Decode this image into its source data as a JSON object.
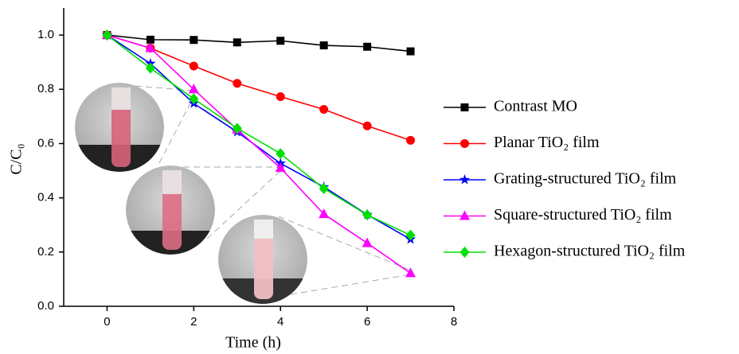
{
  "chart_data": {
    "type": "line",
    "x_label": "Time (h)",
    "y_label": "C/C₀",
    "x": [
      0,
      1,
      2,
      3,
      4,
      5,
      6,
      7
    ],
    "series": [
      {
        "name": "Contrast MO",
        "color": "#000000",
        "marker": "square",
        "values": [
          1.0,
          0.983,
          0.982,
          0.973,
          0.979,
          0.962,
          0.957,
          0.94
        ]
      },
      {
        "name": "Planar TiO₂ film",
        "color": "#ff0000",
        "marker": "circle",
        "values": [
          1.0,
          0.952,
          0.886,
          0.822,
          0.773,
          0.726,
          0.665,
          0.612
        ]
      },
      {
        "name": "Grating-structured TiO₂ film",
        "color": "#0000ff",
        "marker": "star",
        "values": [
          1.0,
          0.895,
          0.748,
          0.643,
          0.527,
          0.44,
          0.338,
          0.247
        ]
      },
      {
        "name": "Square-structured TiO₂ film",
        "color": "#ff00ff",
        "marker": "triangle",
        "values": [
          1.0,
          0.952,
          0.8,
          0.652,
          0.51,
          0.34,
          0.233,
          0.122
        ]
      },
      {
        "name": "Hexagon-structured TiO₂ film",
        "color": "#00e000",
        "marker": "diamond",
        "values": [
          1.0,
          0.878,
          0.765,
          0.656,
          0.563,
          0.434,
          0.337,
          0.262
        ]
      }
    ],
    "xlim": [
      -1,
      8
    ],
    "xticks": [
      0,
      2,
      4,
      6,
      8
    ],
    "ylim": [
      0,
      1.1
    ],
    "yticks": [
      {
        "value": 0,
        "label": "0.0"
      },
      0.2,
      0.4,
      0.6,
      0.8,
      {
        "value": 1,
        "label": "1.0"
      }
    ],
    "legend": "right"
  }
}
